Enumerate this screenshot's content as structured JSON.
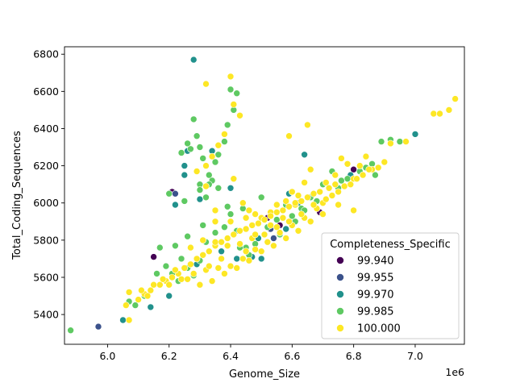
{
  "chart_data": {
    "type": "scatter",
    "title": "",
    "xlabel": "Genome_Size",
    "ylabel": "Total_Coding_Sequences",
    "x_offset_label": "1e6",
    "x_multiplier": 1000000,
    "xlim": [
      5.86,
      7.16
    ],
    "ylim": [
      5240,
      6840
    ],
    "x_ticks": [
      6.0,
      6.2,
      6.4,
      6.6,
      6.8,
      7.0
    ],
    "x_tick_labels": [
      "6.0",
      "6.2",
      "6.4",
      "6.6",
      "6.8",
      "7.0"
    ],
    "y_ticks": [
      5400,
      5600,
      5800,
      6000,
      6200,
      6400,
      6600,
      6800
    ],
    "y_tick_labels": [
      "5400",
      "5600",
      "5800",
      "6000",
      "6200",
      "6400",
      "6600",
      "6800"
    ],
    "grid": false,
    "legend": {
      "title": "Completeness_Specific",
      "placement": "lower-right",
      "entries": [
        {
          "label": "99.940",
          "color": "#440154"
        },
        {
          "label": "99.955",
          "color": "#3b528b"
        },
        {
          "label": "99.970",
          "color": "#21918c"
        },
        {
          "label": "99.985",
          "color": "#5ec962"
        },
        {
          "label": "100.000",
          "color": "#fde725"
        }
      ]
    },
    "series": [
      {
        "name": "99.940",
        "color": "#440154",
        "points": [
          [
            6.15,
            5710
          ],
          [
            6.21,
            6060
          ],
          [
            6.52,
            5920
          ],
          [
            6.69,
            5950
          ],
          [
            6.8,
            6180
          ],
          [
            6.56,
            5880
          ]
        ]
      },
      {
        "name": "99.955",
        "color": "#3b528b",
        "points": [
          [
            5.97,
            5335
          ],
          [
            6.22,
            6050
          ],
          [
            6.53,
            5860
          ],
          [
            6.54,
            5810
          ]
        ]
      },
      {
        "name": "99.970",
        "color": "#21918c",
        "points": [
          [
            6.28,
            6770
          ],
          [
            6.4,
            6080
          ],
          [
            6.25,
            6150
          ],
          [
            6.25,
            6200
          ],
          [
            6.26,
            6280
          ],
          [
            6.3,
            6020
          ],
          [
            6.34,
            6280
          ],
          [
            6.2,
            5500
          ],
          [
            6.18,
            5590
          ],
          [
            6.14,
            5440
          ],
          [
            6.05,
            5370
          ],
          [
            6.37,
            5740
          ],
          [
            6.47,
            5710
          ],
          [
            6.49,
            5810
          ],
          [
            6.58,
            5860
          ],
          [
            6.59,
            6050
          ],
          [
            6.64,
            6260
          ],
          [
            6.62,
            6000
          ],
          [
            6.72,
            6080
          ],
          [
            6.79,
            6150
          ],
          [
            7.0,
            6370
          ],
          [
            6.22,
            5990
          ],
          [
            6.29,
            5670
          ],
          [
            6.42,
            5700
          ],
          [
            6.3,
            5560
          ],
          [
            6.5,
            5700
          ]
        ]
      },
      {
        "name": "99.985",
        "color": "#5ec962",
        "points": [
          [
            6.28,
            6450
          ],
          [
            6.29,
            6360
          ],
          [
            6.3,
            6300
          ],
          [
            6.31,
            6240
          ],
          [
            6.24,
            6270
          ],
          [
            6.26,
            6320
          ],
          [
            6.27,
            6290
          ],
          [
            6.33,
            6150
          ],
          [
            6.35,
            6220
          ],
          [
            6.39,
            6420
          ],
          [
            6.4,
            6610
          ],
          [
            6.42,
            6590
          ],
          [
            6.41,
            6500
          ],
          [
            6.38,
            6330
          ],
          [
            6.36,
            6260
          ],
          [
            6.34,
            6120
          ],
          [
            6.3,
            6100
          ],
          [
            6.25,
            6010
          ],
          [
            6.2,
            6050
          ],
          [
            6.3,
            6070
          ],
          [
            6.36,
            6080
          ],
          [
            6.39,
            5980
          ],
          [
            6.4,
            5940
          ],
          [
            6.42,
            5850
          ],
          [
            6.45,
            5760
          ],
          [
            6.48,
            5780
          ],
          [
            6.52,
            5870
          ],
          [
            6.55,
            5910
          ],
          [
            6.5,
            6030
          ],
          [
            6.58,
            5990
          ],
          [
            6.6,
            5930
          ],
          [
            6.63,
            5970
          ],
          [
            6.66,
            6030
          ],
          [
            6.7,
            6100
          ],
          [
            6.73,
            6170
          ],
          [
            6.76,
            6120
          ],
          [
            6.82,
            6170
          ],
          [
            6.86,
            6210
          ],
          [
            6.89,
            6330
          ],
          [
            6.92,
            6340
          ],
          [
            6.95,
            6330
          ],
          [
            6.87,
            6150
          ],
          [
            6.17,
            5760
          ],
          [
            6.22,
            5770
          ],
          [
            6.24,
            5700
          ],
          [
            6.26,
            5650
          ],
          [
            6.28,
            5610
          ],
          [
            6.3,
            5690
          ],
          [
            6.23,
            5580
          ],
          [
            6.21,
            5620
          ],
          [
            6.19,
            5660
          ],
          [
            6.16,
            5620
          ],
          [
            6.12,
            5500
          ],
          [
            6.09,
            5450
          ],
          [
            6.07,
            5470
          ],
          [
            5.88,
            5315
          ],
          [
            6.26,
            5820
          ],
          [
            6.32,
            5790
          ],
          [
            6.35,
            5840
          ],
          [
            6.38,
            5870
          ],
          [
            6.43,
            5760
          ],
          [
            6.46,
            5720
          ],
          [
            6.52,
            5790
          ],
          [
            6.56,
            5830
          ],
          [
            6.61,
            5900
          ],
          [
            6.64,
            5960
          ],
          [
            6.68,
            6010
          ],
          [
            6.75,
            6080
          ],
          [
            6.78,
            6130
          ],
          [
            6.84,
            6190
          ],
          [
            6.31,
            5880
          ],
          [
            6.44,
            5970
          ],
          [
            6.33,
            6100
          ],
          [
            6.32,
            6030
          ]
        ]
      },
      {
        "name": "100.000",
        "color": "#fde725",
        "points": [
          [
            6.4,
            6680
          ],
          [
            6.32,
            6640
          ],
          [
            6.41,
            6530
          ],
          [
            6.43,
            6470
          ],
          [
            6.38,
            6370
          ],
          [
            6.36,
            6310
          ],
          [
            6.34,
            6250
          ],
          [
            6.32,
            6200
          ],
          [
            6.29,
            6170
          ],
          [
            6.32,
            6090
          ],
          [
            6.41,
            6130
          ],
          [
            6.44,
            6000
          ],
          [
            6.46,
            5960
          ],
          [
            6.48,
            5940
          ],
          [
            6.5,
            5920
          ],
          [
            6.53,
            5950
          ],
          [
            6.55,
            5990
          ],
          [
            6.58,
            6010
          ],
          [
            6.6,
            6060
          ],
          [
            6.62,
            6040
          ],
          [
            6.64,
            6110
          ],
          [
            6.66,
            6180
          ],
          [
            6.65,
            6420
          ],
          [
            6.59,
            6360
          ],
          [
            6.71,
            6110
          ],
          [
            6.74,
            6150
          ],
          [
            6.76,
            6240
          ],
          [
            6.78,
            6210
          ],
          [
            6.8,
            6130
          ],
          [
            6.82,
            6200
          ],
          [
            6.84,
            6250
          ],
          [
            6.86,
            6180
          ],
          [
            6.9,
            6220
          ],
          [
            6.92,
            6320
          ],
          [
            6.97,
            6330
          ],
          [
            7.06,
            6480
          ],
          [
            7.08,
            6480
          ],
          [
            7.11,
            6500
          ],
          [
            7.13,
            6560
          ],
          [
            6.07,
            5370
          ],
          [
            6.06,
            5450
          ],
          [
            6.1,
            5480
          ],
          [
            6.12,
            5510
          ],
          [
            6.14,
            5530
          ],
          [
            6.17,
            5560
          ],
          [
            6.19,
            5580
          ],
          [
            6.21,
            5600
          ],
          [
            6.23,
            5620
          ],
          [
            6.25,
            5650
          ],
          [
            6.27,
            5670
          ],
          [
            6.29,
            5700
          ],
          [
            6.31,
            5720
          ],
          [
            6.33,
            5740
          ],
          [
            6.35,
            5770
          ],
          [
            6.37,
            5790
          ],
          [
            6.39,
            5810
          ],
          [
            6.41,
            5830
          ],
          [
            6.43,
            5850
          ],
          [
            6.45,
            5860
          ],
          [
            6.47,
            5880
          ],
          [
            6.49,
            5890
          ],
          [
            6.51,
            5910
          ],
          [
            6.53,
            5930
          ],
          [
            6.55,
            5950
          ],
          [
            6.57,
            5960
          ],
          [
            6.59,
            5980
          ],
          [
            6.61,
            5990
          ],
          [
            6.63,
            6010
          ],
          [
            6.65,
            6030
          ],
          [
            6.67,
            6050
          ],
          [
            6.69,
            6060
          ],
          [
            6.72,
            6080
          ],
          [
            6.74,
            6100
          ],
          [
            6.07,
            5520
          ],
          [
            6.11,
            5530
          ],
          [
            6.15,
            5560
          ],
          [
            6.2,
            5560
          ],
          [
            6.24,
            5590
          ],
          [
            6.28,
            5620
          ],
          [
            6.32,
            5640
          ],
          [
            6.36,
            5650
          ],
          [
            6.4,
            5660
          ],
          [
            6.44,
            5700
          ],
          [
            6.48,
            5750
          ],
          [
            6.52,
            5790
          ],
          [
            6.56,
            5840
          ],
          [
            6.6,
            5880
          ],
          [
            6.64,
            5920
          ],
          [
            6.68,
            5970
          ],
          [
            6.7,
            6000
          ],
          [
            6.73,
            6040
          ],
          [
            6.77,
            6090
          ],
          [
            6.81,
            6130
          ],
          [
            6.85,
            6180
          ],
          [
            6.27,
            5760
          ],
          [
            6.31,
            5800
          ],
          [
            6.35,
            5790
          ],
          [
            6.39,
            5770
          ],
          [
            6.43,
            5780
          ],
          [
            6.47,
            5810
          ],
          [
            6.51,
            5830
          ],
          [
            6.55,
            5870
          ],
          [
            6.59,
            5900
          ],
          [
            6.63,
            5940
          ],
          [
            6.67,
            5990
          ],
          [
            6.71,
            6020
          ],
          [
            6.75,
            6060
          ],
          [
            6.79,
            6100
          ],
          [
            6.83,
            6150
          ],
          [
            6.3,
            5560
          ],
          [
            6.34,
            5580
          ],
          [
            6.38,
            5620
          ],
          [
            6.42,
            5650
          ],
          [
            6.46,
            5690
          ],
          [
            6.5,
            5740
          ],
          [
            6.54,
            5770
          ],
          [
            6.58,
            5810
          ],
          [
            6.62,
            5850
          ],
          [
            6.66,
            5900
          ],
          [
            6.7,
            5940
          ],
          [
            6.75,
            5990
          ],
          [
            6.88,
            6190
          ],
          [
            6.8,
            5960
          ],
          [
            6.61,
            6000
          ],
          [
            6.57,
            5920
          ],
          [
            6.53,
            5880
          ],
          [
            6.45,
            5740
          ],
          [
            6.37,
            5700
          ],
          [
            6.33,
            5660
          ],
          [
            6.26,
            5590
          ],
          [
            6.22,
            5640
          ],
          [
            6.18,
            5590
          ],
          [
            6.13,
            5500
          ],
          [
            6.45,
            5920
          ],
          [
            6.4,
            5900
          ],
          [
            6.35,
            5960
          ],
          [
            6.35,
            5900
          ],
          [
            6.48,
            5830
          ]
        ]
      }
    ]
  }
}
